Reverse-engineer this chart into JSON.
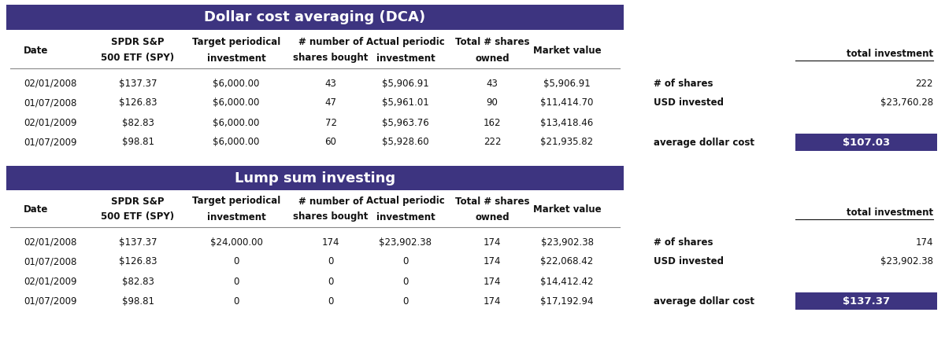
{
  "title1": "Dollar cost averaging (DCA)",
  "title2": "Lump sum investing",
  "header_color": "#3d3480",
  "header_text_color": "#ffffff",
  "highlight_color": "#3d3480",
  "highlight_text_color": "#ffffff",
  "col_headers": [
    "Date",
    "SPDR S&P\n500 ETF (SPY)",
    "Target periodical\ninvestment",
    "# number of\nshares bought",
    "Actual periodic\ninvestment",
    "Total # shares\nowned",
    "Market value"
  ],
  "dca_rows": [
    [
      "02/01/2008",
      "$137.37",
      "$6,000.00",
      "43",
      "$5,906.91",
      "43",
      "$5,906.91"
    ],
    [
      "01/07/2008",
      "$126.83",
      "$6,000.00",
      "47",
      "$5,961.01",
      "90",
      "$11,414.70"
    ],
    [
      "02/01/2009",
      "$82.83",
      "$6,000.00",
      "72",
      "$5,963.76",
      "162",
      "$13,418.46"
    ],
    [
      "01/07/2009",
      "$98.81",
      "$6,000.00",
      "60",
      "$5,928.60",
      "222",
      "$21,935.82"
    ]
  ],
  "dca_summary": {
    "shares": "222",
    "usd_invested": "$23,760.28",
    "avg_dollar_cost": "$107.03"
  },
  "lump_rows": [
    [
      "02/01/2008",
      "$137.37",
      "$24,000.00",
      "174",
      "$23,902.38",
      "174",
      "$23,902.38"
    ],
    [
      "01/07/2008",
      "$126.83",
      "0",
      "0",
      "0",
      "174",
      "$22,068.42"
    ],
    [
      "02/01/2009",
      "$82.83",
      "0",
      "0",
      "0",
      "174",
      "$14,412.42"
    ],
    [
      "01/07/2009",
      "$98.81",
      "0",
      "0",
      "0",
      "174",
      "$17,192.94"
    ]
  ],
  "lump_summary": {
    "shares": "174",
    "usd_invested": "$23,902.38",
    "avg_dollar_cost": "$137.37"
  },
  "bg_color": "#ffffff",
  "label_shares": "# of shares",
  "label_usd": "USD invested",
  "label_avg": "average dollar cost",
  "label_total": "total investment"
}
